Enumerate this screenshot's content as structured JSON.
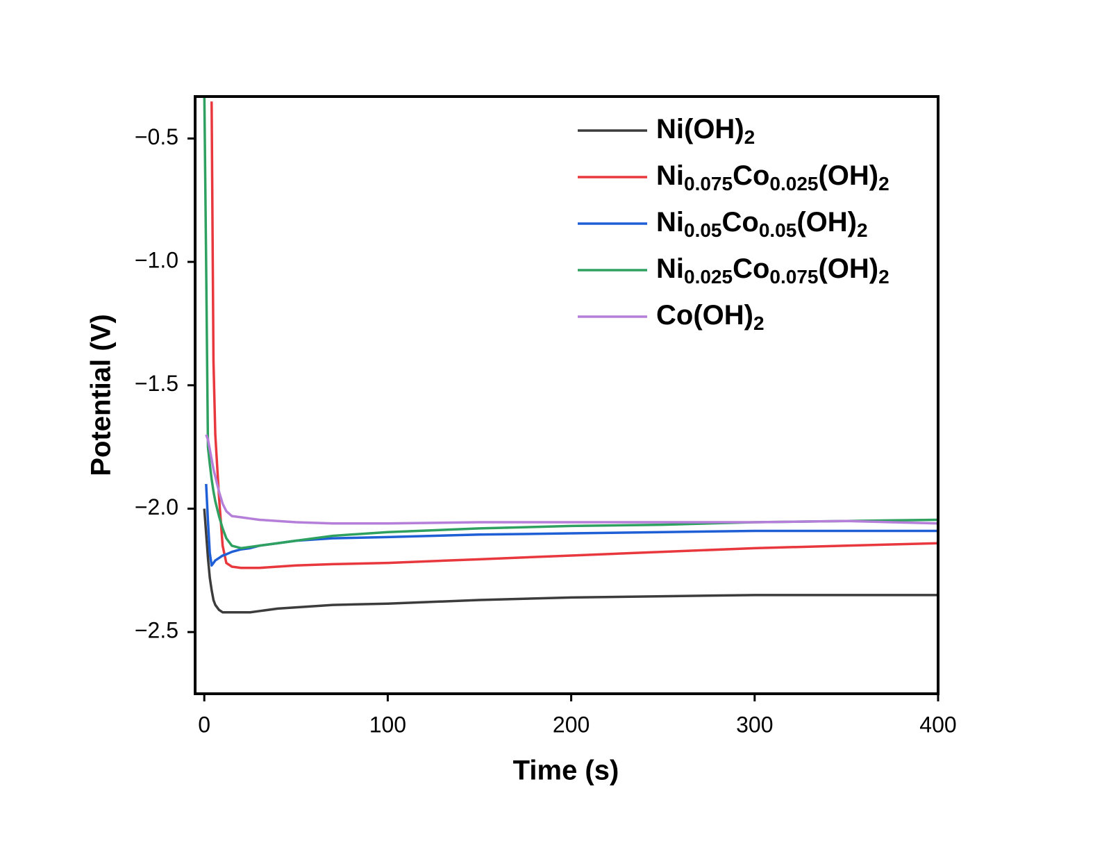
{
  "chart_data": {
    "type": "line",
    "x_label": "Time (s)",
    "y_label": "Potential (V)",
    "xlim": [
      -5,
      400
    ],
    "ylim": [
      -2.75,
      -0.33
    ],
    "xticks": [
      0,
      100,
      200,
      300,
      400
    ],
    "yticks": [
      {
        "value": -0.5,
        "label": "−0.5"
      },
      {
        "value": -1.0,
        "label": "−1.0"
      },
      {
        "value": -1.5,
        "label": "−1.5"
      },
      {
        "value": -2.0,
        "label": "−2.0"
      },
      {
        "value": -2.5,
        "label": "−2.5"
      }
    ],
    "legend": "upper right",
    "x": [
      0,
      1,
      2,
      3,
      4,
      5,
      6,
      8,
      10,
      12,
      15,
      20,
      25,
      30,
      40,
      50,
      70,
      100,
      150,
      200,
      250,
      300,
      350,
      400
    ],
    "series": [
      {
        "name": "Ni(OH)2",
        "color": "#3c3c3c",
        "values": [
          -2.0,
          -2.1,
          -2.2,
          -2.28,
          -2.33,
          -2.37,
          -2.39,
          -2.41,
          -2.42,
          -2.42,
          -2.42,
          -2.42,
          -2.42,
          -2.415,
          -2.405,
          -2.4,
          -2.39,
          -2.385,
          -2.37,
          -2.36,
          -2.355,
          -2.35,
          -2.35,
          -2.35
        ]
      },
      {
        "name": "Ni0.075Co0.025(OH)2",
        "color": "#e8383d",
        "values": [
          null,
          null,
          null,
          null,
          -0.35,
          -1.4,
          -1.7,
          -1.95,
          -2.15,
          -2.22,
          -2.235,
          -2.24,
          -2.24,
          -2.24,
          -2.235,
          -2.23,
          -2.225,
          -2.22,
          -2.205,
          -2.19,
          -2.175,
          -2.16,
          -2.15,
          -2.14
        ]
      },
      {
        "name": "Ni0.05Co0.05(OH)2",
        "color": "#1f5fd6",
        "values": [
          null,
          -1.9,
          -2.05,
          -2.18,
          -2.23,
          -2.22,
          -2.21,
          -2.2,
          -2.19,
          -2.185,
          -2.175,
          -2.165,
          -2.16,
          -2.15,
          -2.14,
          -2.13,
          -2.12,
          -2.115,
          -2.105,
          -2.1,
          -2.095,
          -2.09,
          -2.09,
          -2.09
        ]
      },
      {
        "name": "Ni0.025Co0.075(OH)2",
        "color": "#2ea060",
        "values": [
          -0.3,
          -1.0,
          -1.75,
          -1.82,
          -1.88,
          -1.93,
          -1.97,
          -2.03,
          -2.08,
          -2.12,
          -2.15,
          -2.16,
          -2.155,
          -2.15,
          -2.14,
          -2.13,
          -2.11,
          -2.095,
          -2.08,
          -2.07,
          -2.065,
          -2.055,
          -2.05,
          -2.045
        ]
      },
      {
        "name": "Co(OH)2",
        "color": "#b57fd9",
        "values": [
          null,
          -1.7,
          -1.72,
          -1.76,
          -1.8,
          -1.84,
          -1.87,
          -1.93,
          -1.98,
          -2.01,
          -2.03,
          -2.035,
          -2.04,
          -2.045,
          -2.05,
          -2.055,
          -2.06,
          -2.06,
          -2.055,
          -2.055,
          -2.055,
          -2.055,
          -2.05,
          -2.06
        ]
      }
    ]
  }
}
